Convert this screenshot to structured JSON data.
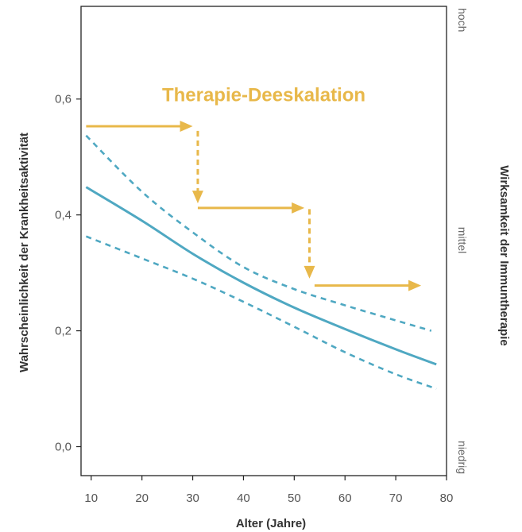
{
  "chart_data": {
    "type": "line",
    "xlabel": "Alter (Jahre)",
    "ylabel": "Wahrscheinlichkeit der Krankheitsaktivität",
    "y2label": "Wirksamkeit der Immuntherapie",
    "xlim": [
      8,
      80
    ],
    "ylim": [
      -0.05,
      0.76
    ],
    "x_ticks": [
      10,
      20,
      30,
      40,
      50,
      60,
      70,
      80
    ],
    "y_ticks": [
      0.0,
      0.2,
      0.4,
      0.6
    ],
    "y_tick_labels": [
      "0,0",
      "0,2",
      "0,4",
      "0,6"
    ],
    "y2_tick_labels": [
      "hoch",
      "mittel",
      "niedrig"
    ],
    "grid": false,
    "colors": {
      "line": "#4fa8c2",
      "arrow": "#e8b84a",
      "frame": "#222222"
    },
    "series": [
      {
        "style": "solid",
        "x": [
          9,
          20,
          30,
          40,
          50,
          60,
          70,
          78
        ],
        "values": [
          0.448,
          0.39,
          0.333,
          0.283,
          0.24,
          0.203,
          0.168,
          0.142
        ]
      },
      {
        "style": "dashed",
        "x": [
          9,
          20,
          30,
          40,
          50,
          60,
          70,
          77
        ],
        "values": [
          0.537,
          0.44,
          0.37,
          0.31,
          0.272,
          0.244,
          0.218,
          0.2
        ]
      },
      {
        "style": "dashed",
        "x": [
          9,
          20,
          30,
          40,
          50,
          60,
          70,
          78
        ],
        "values": [
          0.363,
          0.325,
          0.29,
          0.25,
          0.207,
          0.163,
          0.125,
          0.1
        ]
      }
    ],
    "annotations": [
      {
        "text": "Therapie-Deeskalation",
        "x": 44,
        "y": 0.6
      }
    ],
    "arrows": [
      {
        "kind": "horizontal",
        "from": [
          9,
          0.553
        ],
        "to": [
          30,
          0.553
        ]
      },
      {
        "kind": "vertical",
        "from": [
          31,
          0.545
        ],
        "to": [
          31,
          0.42
        ]
      },
      {
        "kind": "horizontal",
        "from": [
          31,
          0.412
        ],
        "to": [
          52,
          0.412
        ]
      },
      {
        "kind": "vertical",
        "from": [
          53,
          0.41
        ],
        "to": [
          53,
          0.29
        ]
      },
      {
        "kind": "horizontal",
        "from": [
          54,
          0.278
        ],
        "to": [
          75,
          0.278
        ]
      }
    ]
  }
}
